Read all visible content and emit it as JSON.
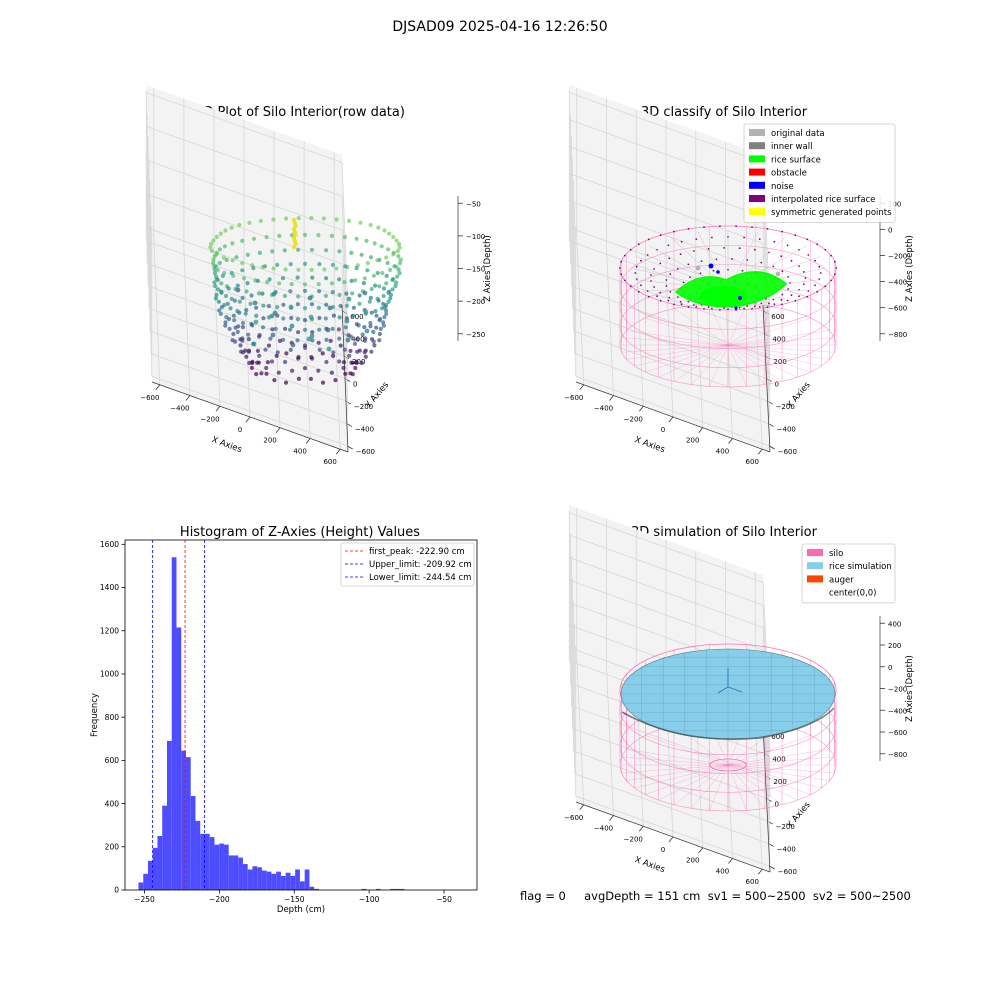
{
  "suptitle": "DJSAD09 2025-04-16 12:26:50",
  "status_line": "flag = 0     avgDepth = 151 cm  sv1 = 500~2500  sv2 = 500~2500",
  "colors": {
    "original_data": "#b3b3b3",
    "inner_wall": "#808080",
    "rice_surface": "#00ff00",
    "obstacle": "#ff0000",
    "noise": "#0000ff",
    "interpolated_rice_surface": "#800080",
    "symmetric_generated_points": "#ffff00",
    "silo": "#ff69b4",
    "rice_simulation": "#87ceeb",
    "auger": "#ff4500",
    "histogram_bar": "#4d4dff",
    "first_peak_line": "#ff0000",
    "limit_line": "#0000ff"
  },
  "chart_data": [
    {
      "type": "scatter",
      "title": "3D Plot of Silo Interior(row data)",
      "xlabel": "X Axies",
      "ylabel": "Y Axies",
      "zlabel": "Z Axies (Depth)",
      "xticks": [
        "−600",
        "−400",
        "−200",
        "0",
        "200",
        "400",
        "600"
      ],
      "yticks": [
        "−600",
        "−400",
        "−200",
        "0",
        "200",
        "400",
        "600"
      ],
      "zticks": [
        "−50",
        "−100",
        "−150",
        "−200",
        "−250"
      ],
      "xlim": [
        -650,
        650
      ],
      "ylim": [
        -650,
        650
      ],
      "zlim": [
        -280,
        -30
      ],
      "colormap": "viridis"
    },
    {
      "type": "scatter",
      "title": "3D classify of Silo Interior",
      "xlabel": "X Axies",
      "ylabel": "Y Axies",
      "zlabel": "Z Axies (Depth)",
      "xticks": [
        "−600",
        "−400",
        "−200",
        "0",
        "200",
        "400",
        "600"
      ],
      "yticks": [
        "−600",
        "−400",
        "−200",
        "0",
        "200",
        "400",
        "600"
      ],
      "zticks": [
        "200",
        "0",
        "−200",
        "−400",
        "−600",
        "−800"
      ],
      "zlim": [
        -900,
        300
      ],
      "legend": [
        {
          "label": "original data",
          "color_key": "original_data"
        },
        {
          "label": "inner wall",
          "color_key": "inner_wall"
        },
        {
          "label": "rice surface",
          "color_key": "rice_surface"
        },
        {
          "label": "obstacle",
          "color_key": "obstacle"
        },
        {
          "label": "noise",
          "color_key": "noise"
        },
        {
          "label": "interpolated rice surface",
          "color_key": "interpolated_rice_surface"
        },
        {
          "label": "symmetric generated points",
          "color_key": "symmetric_generated_points"
        }
      ],
      "legend_loc": "upper right"
    },
    {
      "type": "bar",
      "title": "Histogram of Z-Axies (Height) Values",
      "xlabel": "Depth (cm)",
      "ylabel": "Frequency",
      "xlim": [
        -263,
        -28
      ],
      "ylim": [
        0,
        1620
      ],
      "xticks": [
        -250,
        -200,
        -150,
        -100,
        -50
      ],
      "xtick_labels": [
        "−250",
        "−200",
        "−150",
        "−100",
        "−50"
      ],
      "yticks": [
        0,
        200,
        400,
        600,
        800,
        1000,
        1200,
        1400,
        1600
      ],
      "bin_start": -254,
      "bin_width": 3.17,
      "counts": [
        35,
        75,
        135,
        195,
        250,
        390,
        690,
        1540,
        1215,
        645,
        615,
        435,
        320,
        260,
        260,
        245,
        210,
        215,
        210,
        160,
        160,
        150,
        120,
        95,
        110,
        105,
        90,
        85,
        75,
        85,
        65,
        80,
        65,
        95,
        40,
        95,
        15,
        5,
        0,
        0,
        0,
        0,
        0,
        0,
        0,
        0,
        0,
        5,
        0,
        0,
        5,
        0,
        0,
        5,
        5,
        5
      ],
      "vlines": [
        {
          "x": -222.9,
          "label": "first_peak: -222.90 cm",
          "color_key": "first_peak_line"
        },
        {
          "x": -209.92,
          "label": "Upper_limit: -209.92 cm",
          "color_key": "limit_line"
        },
        {
          "x": -244.54,
          "label": "Lower_limit: -244.54 cm",
          "color_key": "limit_line"
        }
      ],
      "legend_loc": "upper right"
    },
    {
      "type": "area",
      "title": "3D simulation of Silo Interior",
      "xlabel": "X Axies",
      "ylabel": "Y Axies",
      "zlabel": "Z Axies (Depth)",
      "xticks": [
        "−600",
        "−400",
        "−200",
        "0",
        "200",
        "400",
        "600"
      ],
      "yticks": [
        "−600",
        "−400",
        "−200",
        "0",
        "200",
        "400",
        "600"
      ],
      "zticks": [
        "400",
        "200",
        "0",
        "−200",
        "−400",
        "−600",
        "−800"
      ],
      "zlim": [
        -900,
        500
      ],
      "legend": [
        {
          "label": "silo",
          "color_key": "silo"
        },
        {
          "label": "rice simulation",
          "color_key": "rice_simulation"
        },
        {
          "label": "auger",
          "color_key": "auger"
        },
        {
          "label": "center(0,0)",
          "color_key": ""
        }
      ],
      "legend_loc": "upper right"
    }
  ]
}
